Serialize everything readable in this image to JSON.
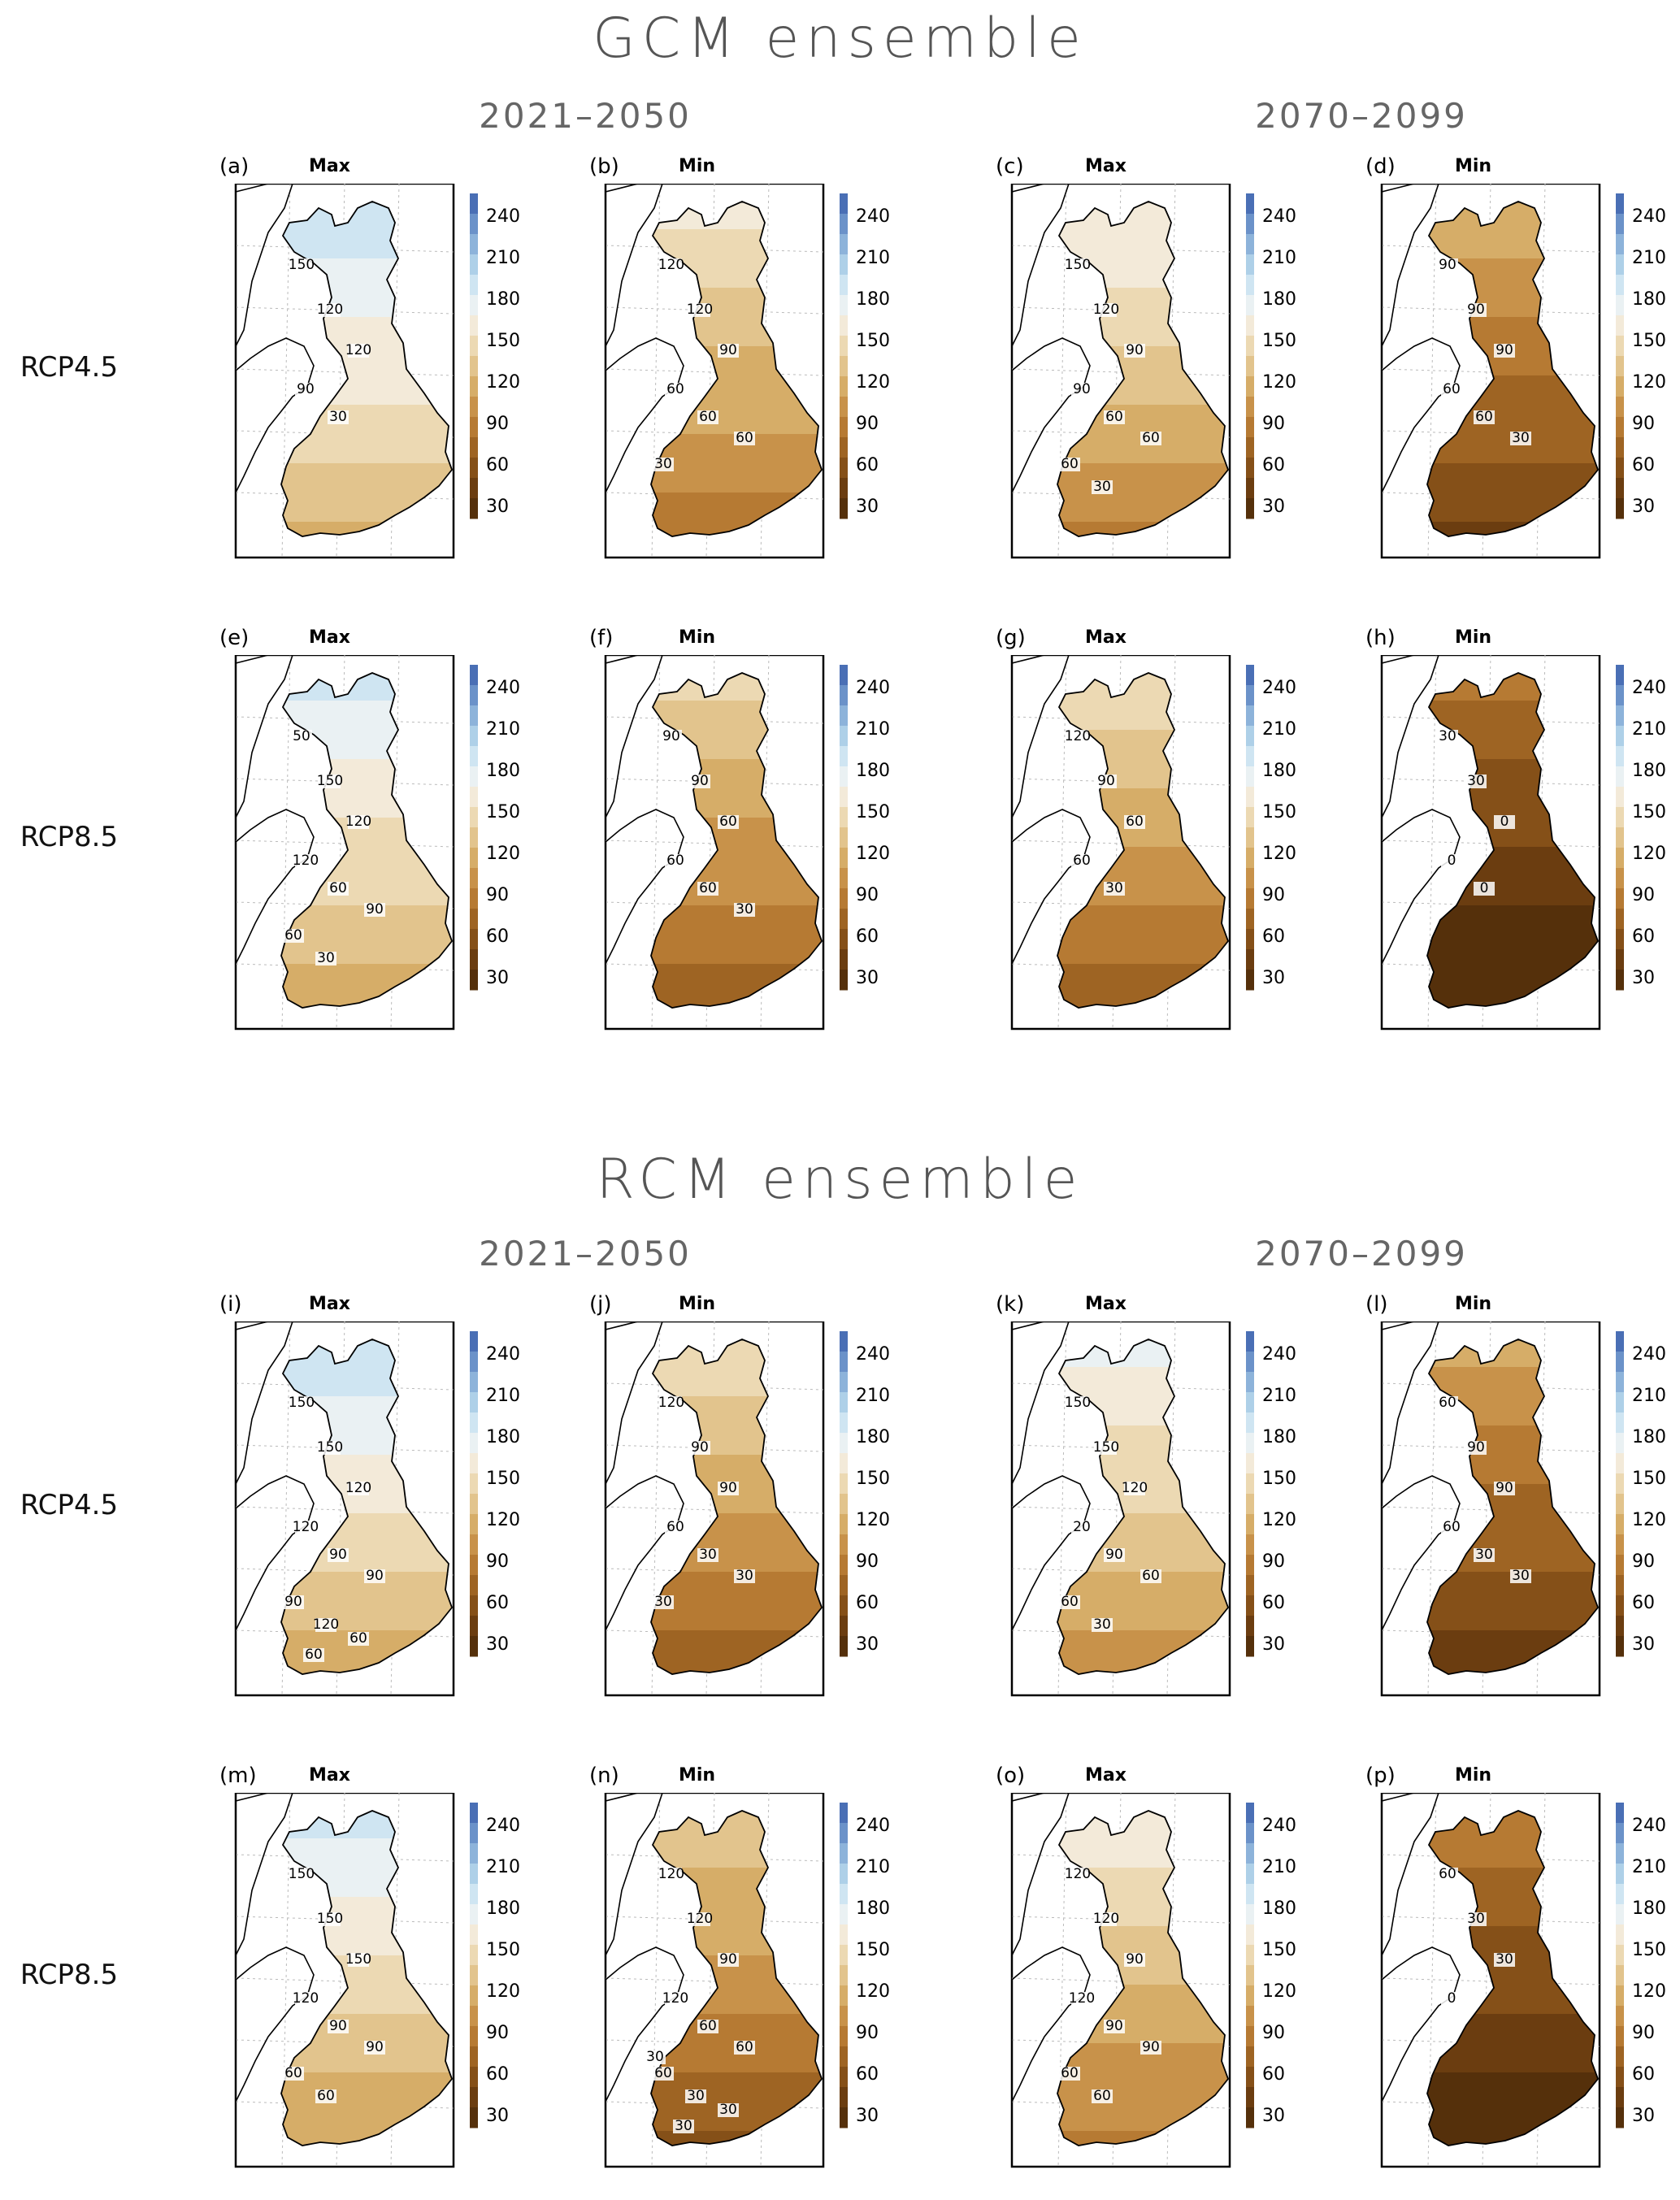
{
  "sections": [
    {
      "title": "GCM ensemble",
      "periods": [
        "2021–2050",
        "2070–2099"
      ],
      "rows": [
        {
          "label": "RCP4.5",
          "panels": [
            {
              "letter": "(a)",
              "stat": "Max",
              "level": 0.62,
              "contours": [
                "150",
                "120",
                "120",
                "90",
                "30"
              ]
            },
            {
              "letter": "(b)",
              "stat": "Min",
              "level": 0.45,
              "contours": [
                "120",
                "120",
                "90",
                "60",
                "60",
                "60",
                "30"
              ]
            },
            {
              "letter": "(c)",
              "stat": "Max",
              "level": 0.5,
              "contours": [
                "150",
                "120",
                "90",
                "90",
                "60",
                "60",
                "60",
                "30"
              ]
            },
            {
              "letter": "(d)",
              "stat": "Min",
              "level": 0.28,
              "contours": [
                "90",
                "90",
                "90",
                "60",
                "60",
                "30"
              ]
            }
          ]
        },
        {
          "label": "RCP8.5",
          "panels": [
            {
              "letter": "(e)",
              "stat": "Max",
              "level": 0.58,
              "contours": [
                "50",
                "150",
                "120",
                "120",
                "60",
                "90",
                "60",
                "30"
              ]
            },
            {
              "letter": "(f)",
              "stat": "Min",
              "level": 0.38,
              "contours": [
                "90",
                "90",
                "60",
                "60",
                "60",
                "30"
              ]
            },
            {
              "letter": "(g)",
              "stat": "Max",
              "level": 0.4,
              "contours": [
                "120",
                "90",
                "60",
                "60",
                "30"
              ]
            },
            {
              "letter": "(h)",
              "stat": "Min",
              "level": 0.12,
              "contours": [
                "30",
                "30",
                "0",
                "0",
                "0"
              ]
            }
          ]
        }
      ]
    },
    {
      "title": "RCM ensemble",
      "periods": [
        "2021–2050",
        "2070–2099"
      ],
      "rows": [
        {
          "label": "RCP4.5",
          "panels": [
            {
              "letter": "(i)",
              "stat": "Max",
              "level": 0.6,
              "contours": [
                "150",
                "150",
                "120",
                "120",
                "90",
                "90",
                "90",
                "120",
                "60",
                "60"
              ]
            },
            {
              "letter": "(j)",
              "stat": "Min",
              "level": 0.4,
              "contours": [
                "120",
                "90",
                "90",
                "60",
                "30",
                "30",
                "30"
              ]
            },
            {
              "letter": "(k)",
              "stat": "Max",
              "level": 0.52,
              "contours": [
                "150",
                "150",
                "120",
                "20",
                "90",
                "60",
                "60",
                "30"
              ]
            },
            {
              "letter": "(l)",
              "stat": "Min",
              "level": 0.25,
              "contours": [
                "60",
                "90",
                "90",
                "60",
                "30",
                "30"
              ]
            }
          ]
        },
        {
          "label": "RCP8.5",
          "panels": [
            {
              "letter": "(m)",
              "stat": "Max",
              "level": 0.57,
              "contours": [
                "150",
                "150",
                "150",
                "120",
                "90",
                "90",
                "60",
                "60"
              ]
            },
            {
              "letter": "(n)",
              "stat": "Min",
              "level": 0.36,
              "contours": [
                "120",
                "120",
                "90",
                "120",
                "60",
                "60",
                "60",
                "30",
                "30",
                "30",
                "30"
              ]
            },
            {
              "letter": "(o)",
              "stat": "Max",
              "level": 0.47,
              "contours": [
                "120",
                "120",
                "90",
                "120",
                "90",
                "90",
                "60",
                "60"
              ]
            },
            {
              "letter": "(p)",
              "stat": "Min",
              "level": 0.15,
              "contours": [
                "60",
                "30",
                "30",
                "0"
              ]
            }
          ]
        }
      ]
    }
  ],
  "colorbar": {
    "ticks": [
      "240",
      "210",
      "180",
      "150",
      "120",
      "90",
      "60",
      "30"
    ],
    "colors": [
      "#4a6fb5",
      "#6b92c9",
      "#8db3da",
      "#aed0e8",
      "#cfe5f2",
      "#eaf1f3",
      "#f3ead9",
      "#ecd9b3",
      "#e2c48d",
      "#d6ad68",
      "#c8924a",
      "#b67a33",
      "#9e6423",
      "#855018",
      "#6b3d10",
      "#55300b"
    ]
  }
}
